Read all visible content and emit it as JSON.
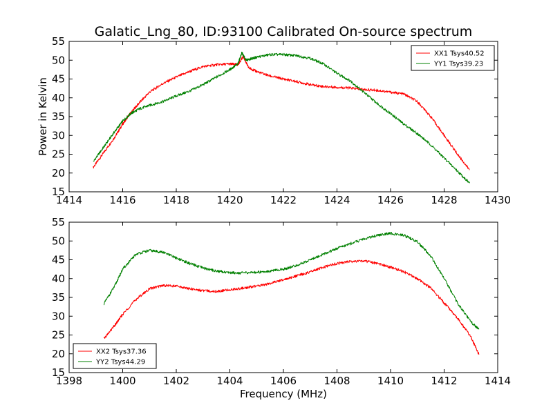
{
  "chart_data": [
    {
      "type": "line",
      "title": "Galatic_Lng_80, ID:93100 Calibrated On-source spectrum",
      "xlabel": "",
      "ylabel": "Power in Kelvin",
      "xlim": [
        1414,
        1430
      ],
      "ylim": [
        15,
        55
      ],
      "xticks": [
        1414,
        1416,
        1418,
        1420,
        1422,
        1424,
        1426,
        1428,
        1430
      ],
      "yticks": [
        15,
        20,
        25,
        30,
        35,
        40,
        45,
        50,
        55
      ],
      "legend_position": "top-right",
      "series": [
        {
          "name": "XX1 Tsys40.52",
          "color": "#ff0000",
          "x": [
            1414.9,
            1415.3,
            1415.7,
            1416.0,
            1416.3,
            1416.6,
            1417.0,
            1417.5,
            1418.0,
            1418.5,
            1419.0,
            1419.5,
            1420.0,
            1420.3,
            1420.5,
            1420.7,
            1421.0,
            1421.5,
            1422.0,
            1422.5,
            1423.0,
            1423.5,
            1424.0,
            1424.5,
            1425.0,
            1425.5,
            1426.0,
            1426.5,
            1427.0,
            1427.5,
            1428.0,
            1428.5,
            1428.95
          ],
          "y": [
            21.5,
            25.5,
            29.5,
            33.0,
            36.0,
            38.5,
            41.5,
            43.8,
            45.5,
            47.0,
            48.3,
            48.8,
            49.0,
            48.8,
            51.0,
            48.0,
            47.0,
            45.8,
            45.0,
            44.3,
            43.5,
            43.0,
            42.8,
            42.6,
            42.2,
            42.0,
            41.5,
            41.0,
            39.0,
            35.0,
            30.0,
            25.0,
            20.8
          ]
        },
        {
          "name": "YY1 Tsys39.23",
          "color": "#008000",
          "x": [
            1414.9,
            1415.3,
            1415.7,
            1416.0,
            1416.3,
            1416.6,
            1417.0,
            1417.5,
            1418.0,
            1418.5,
            1419.0,
            1419.5,
            1420.0,
            1420.3,
            1420.45,
            1420.6,
            1421.0,
            1421.5,
            1422.0,
            1422.5,
            1423.0,
            1423.5,
            1424.0,
            1424.5,
            1425.0,
            1425.5,
            1426.0,
            1426.5,
            1427.0,
            1427.5,
            1428.0,
            1428.5,
            1428.95
          ],
          "y": [
            23.0,
            27.0,
            31.0,
            33.8,
            35.8,
            37.0,
            38.0,
            39.0,
            40.5,
            41.8,
            43.5,
            45.5,
            47.5,
            49.0,
            52.0,
            50.0,
            50.8,
            51.5,
            51.5,
            51.2,
            50.5,
            49.0,
            46.5,
            44.5,
            41.5,
            38.5,
            35.8,
            33.0,
            30.5,
            27.5,
            24.0,
            20.5,
            17.3
          ]
        }
      ]
    },
    {
      "type": "line",
      "title": "",
      "xlabel": "Frequency (MHz)",
      "ylabel": "",
      "xlim": [
        1398,
        1414
      ],
      "ylim": [
        15,
        55
      ],
      "xticks": [
        1398,
        1400,
        1402,
        1404,
        1406,
        1408,
        1410,
        1412,
        1414
      ],
      "yticks": [
        15,
        20,
        25,
        30,
        35,
        40,
        45,
        50,
        55
      ],
      "legend_position": "bottom-left",
      "series": [
        {
          "name": "XX2 Tsys37.36",
          "color": "#ff0000",
          "x": [
            1399.3,
            1399.7,
            1400.0,
            1400.5,
            1401.0,
            1401.5,
            1402.0,
            1402.5,
            1403.0,
            1403.5,
            1404.0,
            1404.5,
            1405.0,
            1405.5,
            1406.0,
            1406.5,
            1407.0,
            1407.5,
            1408.0,
            1408.5,
            1409.0,
            1409.5,
            1410.0,
            1410.5,
            1411.0,
            1411.5,
            1412.0,
            1412.5,
            1413.0,
            1413.3
          ],
          "y": [
            24.0,
            27.5,
            30.5,
            34.5,
            37.3,
            38.2,
            38.0,
            37.3,
            36.8,
            36.6,
            37.0,
            37.5,
            38.0,
            38.7,
            39.7,
            40.7,
            41.8,
            43.0,
            44.0,
            44.5,
            44.7,
            44.0,
            43.0,
            41.8,
            40.0,
            37.5,
            33.5,
            29.5,
            24.5,
            19.8
          ]
        },
        {
          "name": "YY2 Tsys44.29",
          "color": "#008000",
          "x": [
            1399.3,
            1399.7,
            1400.0,
            1400.5,
            1401.0,
            1401.5,
            1402.0,
            1402.5,
            1403.0,
            1403.5,
            1404.0,
            1404.5,
            1405.0,
            1405.5,
            1406.0,
            1406.5,
            1407.0,
            1407.5,
            1408.0,
            1408.5,
            1409.0,
            1409.5,
            1410.0,
            1410.5,
            1411.0,
            1411.5,
            1412.0,
            1412.5,
            1413.0,
            1413.3
          ],
          "y": [
            33.3,
            38.0,
            42.5,
            46.5,
            47.5,
            47.0,
            45.5,
            44.0,
            42.8,
            42.0,
            41.6,
            41.5,
            41.7,
            42.0,
            42.5,
            43.5,
            45.0,
            46.5,
            48.0,
            49.3,
            50.5,
            51.5,
            52.0,
            51.5,
            49.8,
            46.0,
            40.0,
            33.5,
            28.5,
            26.5
          ]
        }
      ]
    }
  ]
}
